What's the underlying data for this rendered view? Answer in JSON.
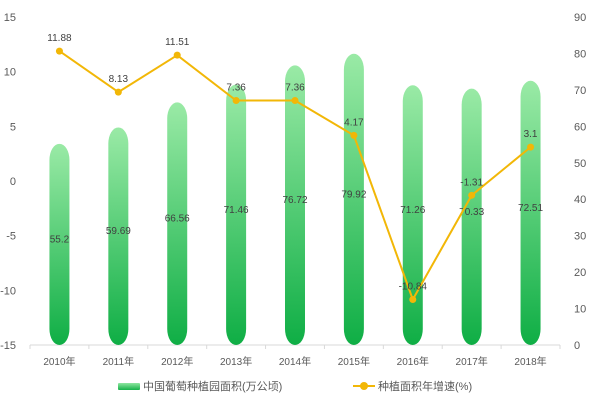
{
  "chart_data": {
    "type": "bar+line",
    "categories": [
      "2010年",
      "2011年",
      "2012年",
      "2013年",
      "2014年",
      "2015年",
      "2016年",
      "2017年",
      "2018年"
    ],
    "series": [
      {
        "name": "中国葡萄种植园面积(万公顷)",
        "type": "bar",
        "axis": "right",
        "values": [
          55.2,
          59.69,
          66.56,
          71.46,
          76.72,
          79.92,
          71.26,
          70.33,
          72.51
        ],
        "color": "#2dbf5a"
      },
      {
        "name": "种植面积年增速(%)",
        "type": "line",
        "axis": "left",
        "values": [
          11.88,
          8.13,
          11.51,
          7.36,
          7.36,
          4.17,
          -10.84,
          -1.31,
          3.1
        ],
        "color": "#f2b707"
      }
    ],
    "left_axis": {
      "ticks": [
        "15",
        "10",
        "5",
        "0",
        "-5",
        "-10",
        "-15"
      ],
      "range": [
        -15,
        15
      ]
    },
    "right_axis": {
      "ticks": [
        "90",
        "80",
        "70",
        "60",
        "50",
        "40",
        "30",
        "20",
        "10",
        "0"
      ],
      "range": [
        0,
        90
      ]
    },
    "title": "",
    "xlabel": "",
    "ylabel": "",
    "grid": false,
    "legend_position": "bottom"
  },
  "legend": {
    "bar_label": "中国葡萄种植园面积(万公顷)",
    "line_label": "种植面积年增速(%)"
  }
}
